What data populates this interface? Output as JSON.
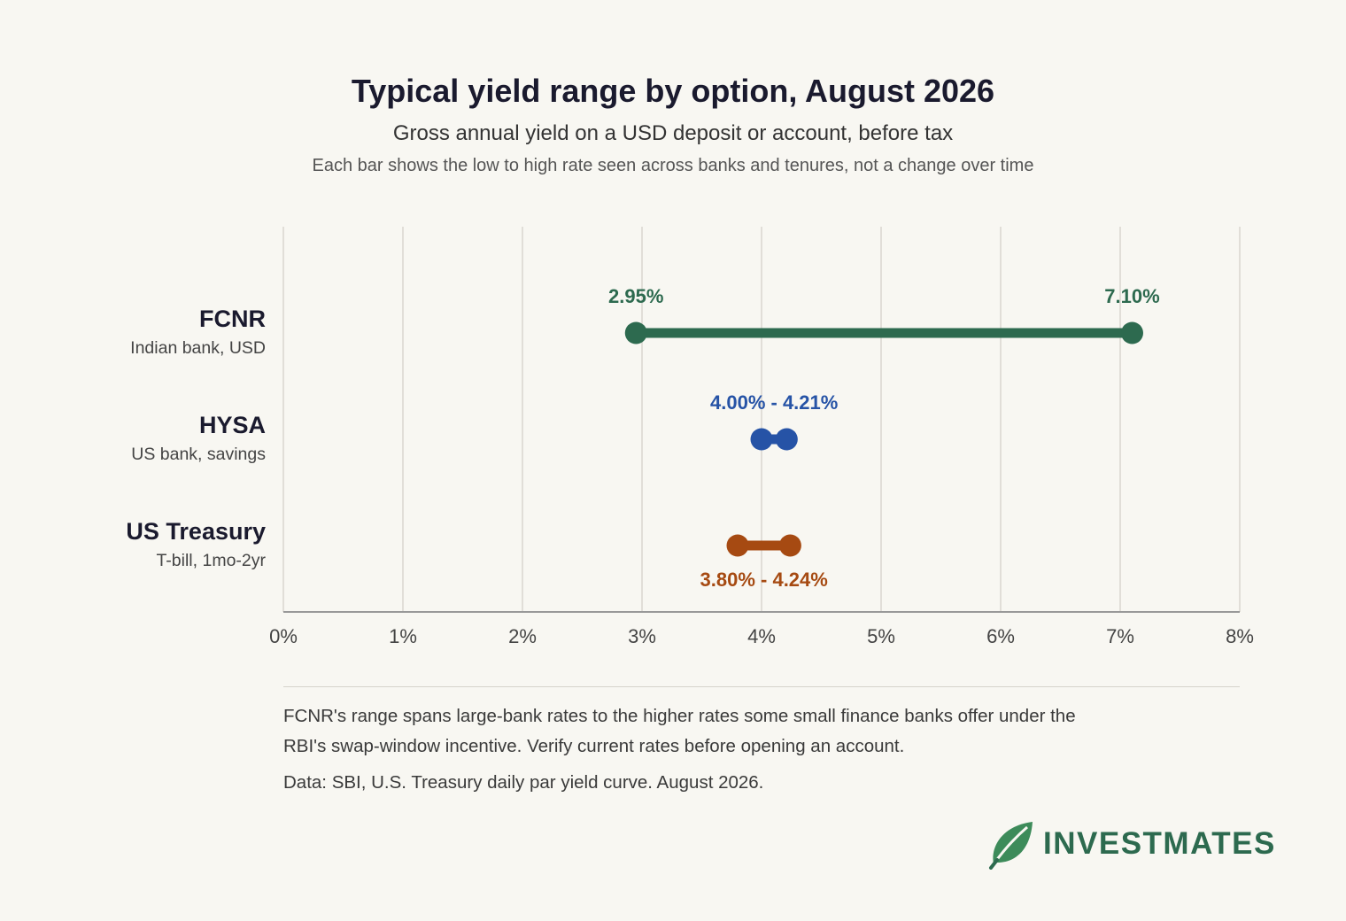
{
  "title": "Typical yield range by option, August 2026",
  "subtitle": "Gross annual yield on a USD deposit or account, before tax",
  "note": "Each bar shows the low to high rate seen across banks and tenures, not a change over time",
  "chart_data": {
    "type": "range",
    "xlim": [
      0,
      8
    ],
    "x_ticks": [
      "0%",
      "1%",
      "2%",
      "3%",
      "4%",
      "5%",
      "6%",
      "7%",
      "8%"
    ],
    "grid": true,
    "series": [
      {
        "name": "FCNR",
        "sublabel": "Indian bank, USD",
        "low": 2.95,
        "high": 7.1,
        "color": "#2d6a4f",
        "label_position": "above-split",
        "low_label": "2.95%",
        "high_label": "7.10%"
      },
      {
        "name": "HYSA",
        "sublabel": "US bank, savings",
        "low": 4.0,
        "high": 4.21,
        "color": "#2653a6",
        "label_position": "above",
        "range_label": "4.00% - 4.21%"
      },
      {
        "name": "US Treasury",
        "sublabel": "T-bill, 1mo-2yr",
        "low": 3.8,
        "high": 4.24,
        "color": "#a64a12",
        "label_position": "below",
        "range_label": "3.80% - 4.24%"
      }
    ]
  },
  "footnote": "FCNR's range spans large-bank rates to the higher rates some small finance banks offer under the RBI's swap-window incentive. Verify current rates before opening an account.",
  "source": "Data: SBI, U.S. Treasury daily par yield curve. August 2026.",
  "logo": {
    "text": "INVESTMATES",
    "icon": "leaf-icon",
    "color": "#2d6a4f"
  }
}
